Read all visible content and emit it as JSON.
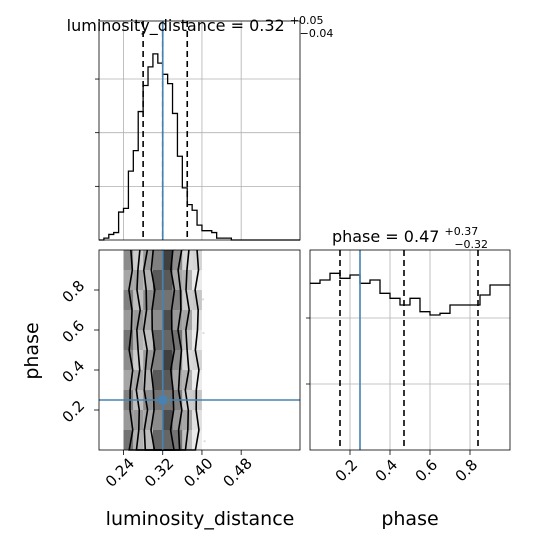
{
  "chart_data": {
    "type": "corner",
    "params": [
      "luminosity_distance",
      "phase"
    ],
    "truth": {
      "luminosity_distance": 0.32,
      "phase": 0.25
    },
    "lum_hist": {
      "type": "histogram",
      "title": {
        "prefix": "luminosity_distance = ",
        "value": "0.32",
        "plus": "+0.05",
        "minus": "−0.04"
      },
      "xlim": [
        0.19,
        0.6
      ],
      "ylim": [
        0,
        1
      ],
      "bin_edges": [
        0.19,
        0.2,
        0.21,
        0.22,
        0.23,
        0.24,
        0.25,
        0.26,
        0.27,
        0.28,
        0.29,
        0.3,
        0.31,
        0.32,
        0.33,
        0.34,
        0.35,
        0.36,
        0.37,
        0.38,
        0.39,
        0.4,
        0.41,
        0.42,
        0.43,
        0.44,
        0.45,
        0.46,
        0.47,
        0.48,
        0.49,
        0.5,
        0.51,
        0.52,
        0.53,
        0.54,
        0.55,
        0.56,
        0.57,
        0.58,
        0.59,
        0.6
      ],
      "counts": [
        0,
        0.01,
        0.03,
        0.04,
        0.15,
        0.17,
        0.37,
        0.48,
        0.69,
        0.83,
        0.93,
        1.0,
        0.95,
        0.89,
        0.84,
        0.68,
        0.45,
        0.28,
        0.19,
        0.16,
        0.08,
        0.05,
        0.05,
        0.04,
        0.01,
        0.01,
        0.01,
        0,
        0,
        0,
        0,
        0,
        0,
        0,
        0,
        0,
        0,
        0,
        0,
        0,
        0
      ],
      "quantiles": [
        0.28,
        0.32,
        0.37
      ],
      "xticks": [
        0.24,
        0.32,
        0.4,
        0.48
      ]
    },
    "phase_hist": {
      "type": "histogram",
      "title": {
        "prefix": "phase = ",
        "value": "0.47",
        "plus": "+0.37",
        "minus": "−0.32"
      },
      "xlim": [
        0,
        1
      ],
      "ylim": [
        0,
        1.2
      ],
      "bin_edges": [
        0,
        0.05,
        0.1,
        0.15,
        0.2,
        0.25,
        0.3,
        0.35,
        0.4,
        0.45,
        0.5,
        0.55,
        0.6,
        0.65,
        0.7,
        0.75,
        0.8,
        0.85,
        0.9,
        0.95,
        1.0
      ],
      "counts": [
        1.0,
        1.02,
        1.06,
        1.03,
        1.05,
        1.0,
        1.02,
        0.94,
        0.91,
        0.87,
        0.91,
        0.83,
        0.81,
        0.82,
        0.87,
        0.87,
        0.87,
        0.93,
        0.99,
        0.99
      ],
      "quantiles": [
        0.15,
        0.47,
        0.84
      ],
      "xticks": [
        "0.2",
        "0.4",
        "0.6",
        "0.8"
      ],
      "xlabel": "phase"
    },
    "joint": {
      "type": "2d-histogram-contour",
      "xlim": [
        0.19,
        0.6
      ],
      "ylim": [
        0,
        1
      ],
      "xlabel": "luminosity_distance",
      "ylabel": "phase",
      "xticks": [
        "0.24",
        "0.32",
        "0.40",
        "0.48"
      ],
      "yticks": [
        "0.2",
        "0.4",
        "0.6",
        "0.8"
      ],
      "contour_levels": 4
    }
  }
}
